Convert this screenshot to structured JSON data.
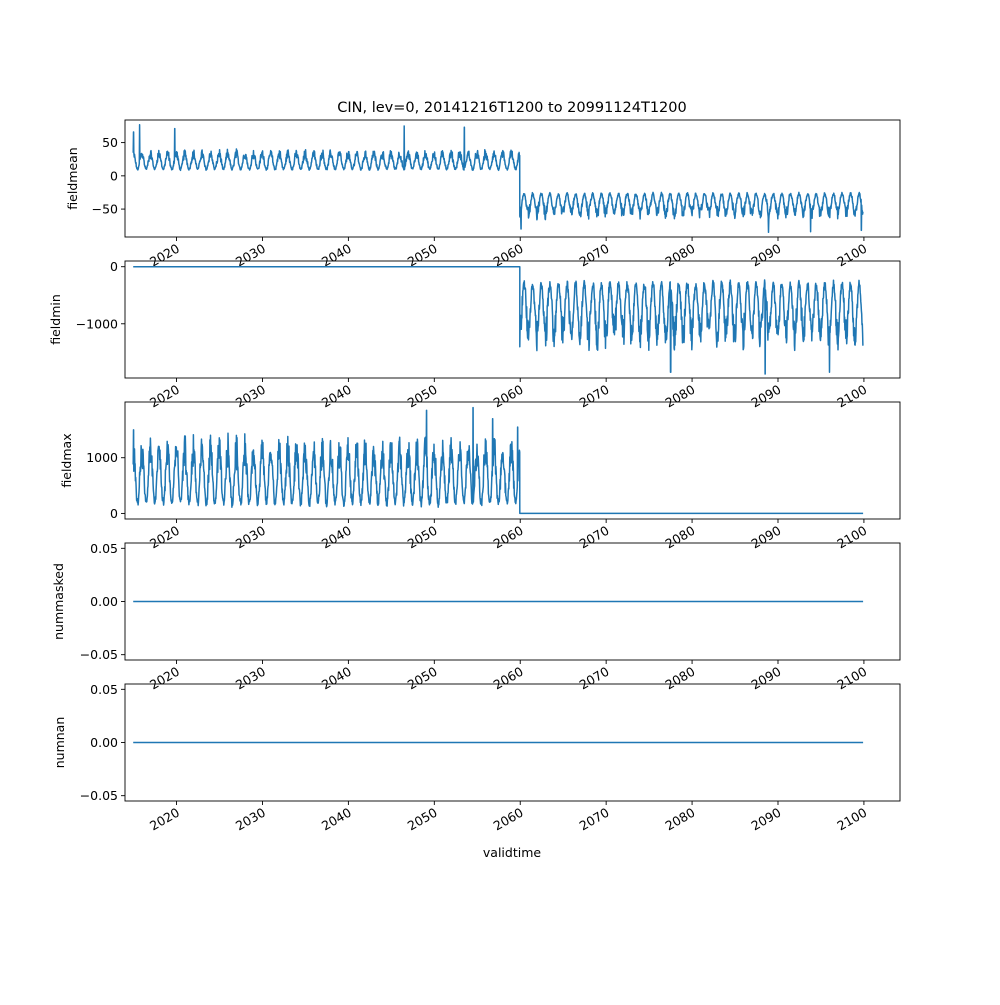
{
  "chart_data": {
    "type": "line",
    "title": "CIN, lev=0, 20141216T1200 to 20991124T1200",
    "xlabel": "validtime",
    "x_range": [
      "2014-12-16",
      "2099-11-24"
    ],
    "xlim": [
      2014.0,
      2104.2
    ],
    "xtick_labels": [
      "2020",
      "2030",
      "2040",
      "2050",
      "2060",
      "2070",
      "2080",
      "2090",
      "2100"
    ],
    "line_color": "#1f77b4",
    "panels": [
      {
        "ylabel": "fieldmean",
        "ylim": [
          -92,
          84
        ],
        "yticks": [
          50,
          0,
          -50
        ],
        "ytick_labels": [
          "50",
          "0",
          "−50"
        ],
        "segments": [
          {
            "x_start": 2014.96,
            "x_end": 2059.95,
            "base": 10,
            "peak": 40,
            "extremes": [
              [
                2015.0,
                66
              ],
              [
                2015.7,
                77
              ],
              [
                2019.8,
                71
              ],
              [
                2046.5,
                75
              ],
              [
                2053.5,
                73
              ]
            ]
          },
          {
            "x_start": 2059.95,
            "x_end": 2099.9,
            "base": -27,
            "peak": -65,
            "extremes": [
              [
                2060.1,
                -80
              ],
              [
                2088.9,
                -85
              ],
              [
                2093.8,
                -84
              ],
              [
                2099.7,
                -82
              ]
            ]
          }
        ]
      },
      {
        "ylabel": "fieldmin",
        "ylim": [
          -1950,
          100
        ],
        "yticks": [
          0,
          -1000
        ],
        "ytick_labels": [
          "0",
          "−1000"
        ],
        "segments": [
          {
            "x_start": 2014.96,
            "x_end": 2059.95,
            "base": 0,
            "peak": 0,
            "extremes": []
          },
          {
            "x_start": 2059.95,
            "x_end": 2099.9,
            "base": -300,
            "peak": -1450,
            "extremes": [
              [
                2060.0,
                -1000
              ],
              [
                2077.5,
                -1850
              ],
              [
                2088.5,
                -1880
              ],
              [
                2096.0,
                -1850
              ]
            ]
          }
        ]
      },
      {
        "ylabel": "fieldmax",
        "ylim": [
          -100,
          2000
        ],
        "yticks": [
          1000,
          0
        ],
        "ytick_labels": [
          "1000",
          "0"
        ],
        "segments": [
          {
            "x_start": 2014.96,
            "x_end": 2059.95,
            "base": 180,
            "peak": 1400,
            "extremes": [
              [
                2015.0,
                1500
              ],
              [
                2049.1,
                1850
              ],
              [
                2054.5,
                1900
              ],
              [
                2056.8,
                1700
              ],
              [
                2059.7,
                1550
              ]
            ]
          },
          {
            "x_start": 2059.95,
            "x_end": 2099.9,
            "base": 0,
            "peak": 0,
            "extremes": []
          }
        ]
      },
      {
        "ylabel": "nummasked",
        "ylim": [
          -0.055,
          0.055
        ],
        "yticks": [
          0.05,
          0.0,
          -0.05
        ],
        "ytick_labels": [
          "0.05",
          "0.00",
          "−0.05"
        ],
        "segments": [
          {
            "x_start": 2014.96,
            "x_end": 2099.9,
            "base": 0,
            "peak": 0,
            "extremes": []
          }
        ]
      },
      {
        "ylabel": "numnan",
        "ylim": [
          -0.055,
          0.055
        ],
        "yticks": [
          0.05,
          0.0,
          -0.05
        ],
        "ytick_labels": [
          "0.05",
          "0.00",
          "−0.05"
        ],
        "segments": [
          {
            "x_start": 2014.96,
            "x_end": 2099.9,
            "base": 0,
            "peak": 0,
            "extremes": []
          }
        ]
      }
    ]
  }
}
